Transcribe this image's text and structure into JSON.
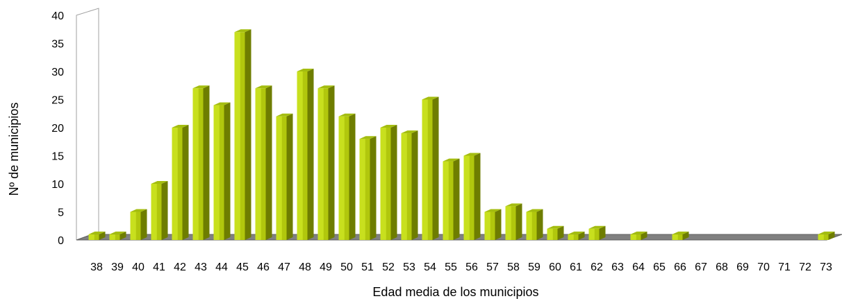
{
  "chart_data": {
    "type": "bar",
    "title": "",
    "xlabel": "Edad media de los municipios",
    "ylabel": "Nº de municipios",
    "ylim": [
      0,
      40
    ],
    "yticks": [
      "0",
      "5",
      "10",
      "15",
      "20",
      "25",
      "30",
      "35",
      "40"
    ],
    "grid": false,
    "legend": "none",
    "style": "3d-cylinder",
    "categories": [
      "38",
      "39",
      "40",
      "41",
      "42",
      "43",
      "44",
      "45",
      "46",
      "47",
      "48",
      "49",
      "50",
      "51",
      "52",
      "53",
      "54",
      "55",
      "56",
      "57",
      "58",
      "59",
      "60",
      "61",
      "62",
      "63",
      "64",
      "65",
      "66",
      "67",
      "68",
      "69",
      "70",
      "71",
      "72",
      "73"
    ],
    "series": [
      {
        "values": [
          1,
          1,
          5,
          10,
          20,
          27,
          24,
          37,
          27,
          22,
          30,
          27,
          22,
          18,
          20,
          19,
          25,
          14,
          15,
          5,
          6,
          5,
          2,
          1,
          2,
          0,
          1,
          0,
          1,
          0,
          0,
          0,
          0,
          0,
          0,
          1
        ]
      }
    ],
    "colors": {
      "bar_front": "#c8e01e",
      "bar_side": "#6e7d00",
      "bar_top": "#a4bd10",
      "floor": "#808080",
      "floor_edge": "#5e5e5e"
    }
  }
}
